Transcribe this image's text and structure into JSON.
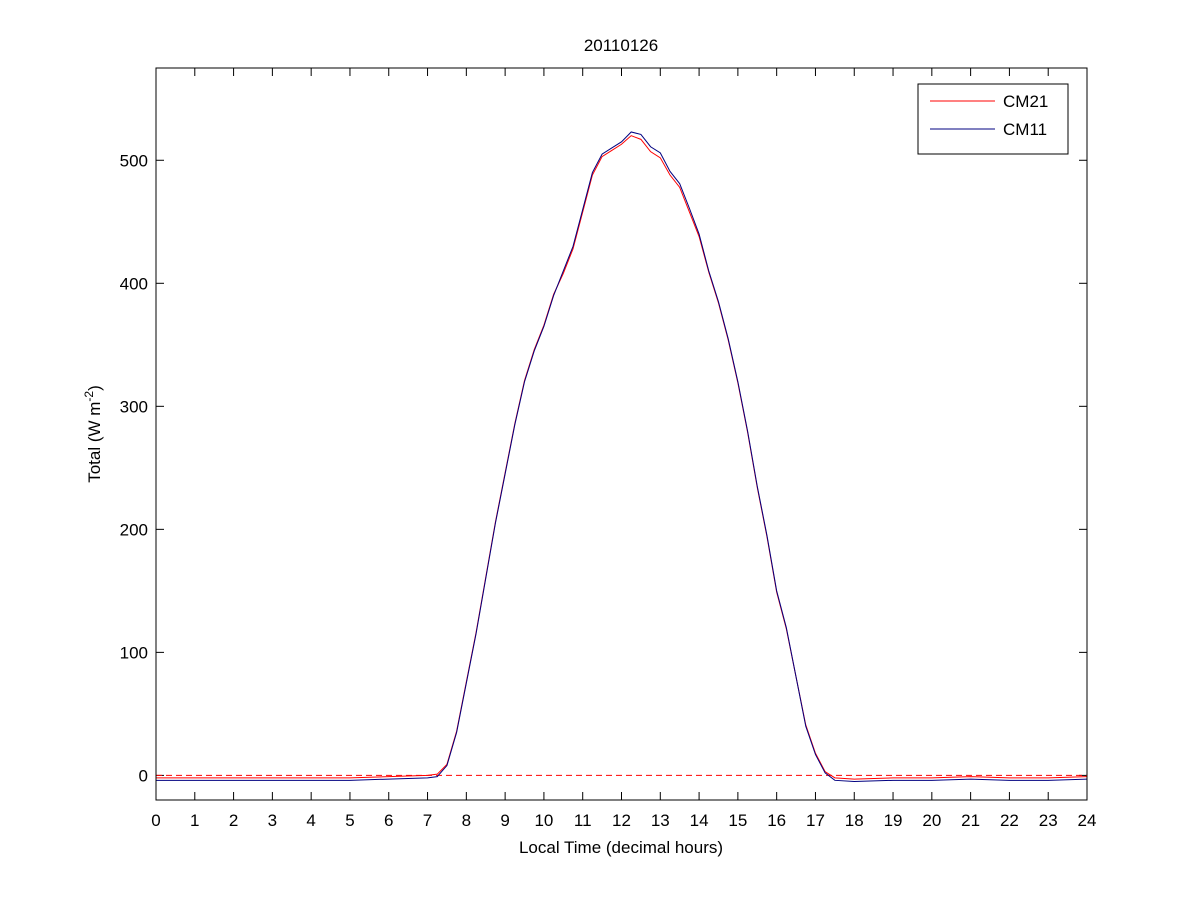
{
  "chart_data": {
    "type": "line",
    "title": "20110126",
    "xlabel": "Local Time (decimal hours)",
    "ylabel": {
      "text": "Total (W m",
      "superscript": "-2",
      "suffix": ")"
    },
    "x": [
      0,
      1,
      2,
      3,
      4,
      5,
      6,
      7,
      7.25,
      7.5,
      7.75,
      8,
      8.25,
      8.5,
      8.75,
      9,
      9.25,
      9.5,
      9.75,
      10,
      10.25,
      10.5,
      10.75,
      11,
      11.25,
      11.5,
      11.75,
      12,
      12.25,
      12.5,
      12.75,
      13,
      13.25,
      13.5,
      13.75,
      14,
      14.25,
      14.5,
      14.75,
      15,
      15.25,
      15.5,
      15.75,
      16,
      16.25,
      16.5,
      16.75,
      17,
      17.25,
      17.5,
      18,
      19,
      20,
      21,
      22,
      23,
      24
    ],
    "series": [
      {
        "name": "CM21",
        "color": "#ff0000",
        "values": [
          -2,
          -2,
          -2,
          -2,
          -2,
          -2,
          -1,
          0,
          1,
          9,
          36,
          76,
          116,
          161,
          206,
          246,
          286,
          321,
          346,
          366,
          391,
          408,
          428,
          458,
          488,
          503,
          508,
          513,
          520,
          517,
          507,
          502,
          488,
          478,
          458,
          438,
          409,
          384,
          354,
          319,
          279,
          234,
          194,
          149,
          119,
          80,
          41,
          18,
          3,
          -2,
          -3,
          -2,
          -2,
          -1,
          -2,
          -2,
          -1
        ]
      },
      {
        "name": "CM11",
        "color": "#000080",
        "values": [
          -4,
          -4,
          -4,
          -4,
          -4,
          -4,
          -3,
          -2,
          -1,
          8,
          35,
          75,
          115,
          160,
          205,
          245,
          285,
          320,
          345,
          365,
          390,
          410,
          430,
          460,
          490,
          505,
          510,
          515,
          523,
          521,
          511,
          506,
          491,
          481,
          461,
          440,
          410,
          385,
          355,
          320,
          280,
          235,
          195,
          150,
          120,
          80,
          40,
          17,
          2,
          -4,
          -5,
          -4,
          -4,
          -3,
          -4,
          -4,
          -3
        ]
      }
    ],
    "reference_line": {
      "y": 0,
      "color": "#ff0000"
    },
    "xlim": [
      0,
      24
    ],
    "xticks": [
      0,
      1,
      2,
      3,
      4,
      5,
      6,
      7,
      8,
      9,
      10,
      11,
      12,
      13,
      14,
      15,
      16,
      17,
      18,
      19,
      20,
      21,
      22,
      23,
      24
    ],
    "ylim": [
      -20,
      575
    ],
    "yticks": [
      0,
      100,
      200,
      300,
      400,
      500
    ],
    "legend": "upper right",
    "grid": false
  }
}
